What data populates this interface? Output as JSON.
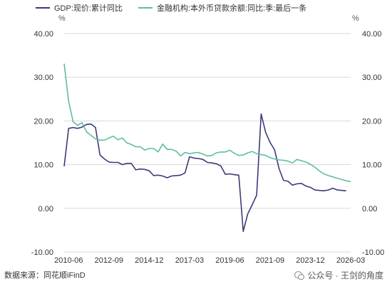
{
  "chart_data": {
    "type": "line",
    "title": "",
    "legend_position": "top-left",
    "left_unit": "%",
    "right_unit": "%",
    "ylim": [
      -10,
      40
    ],
    "y_ticks": [
      "40.00",
      "30.00",
      "20.00",
      "10.00",
      "0.00",
      "-10.00"
    ],
    "right_y_ticks": [
      "40.00",
      "30.00",
      "20.00",
      "10.00",
      "0.00",
      "-10.00"
    ],
    "x_ticks": [
      "2010-06",
      "2012-09",
      "2014-12",
      "2017-03",
      "2019-06",
      "2021-09",
      "2023-12",
      "2026-03"
    ],
    "grid": "horizontal",
    "series": [
      {
        "name": "GDP:现价:累计同比",
        "color": "#3b3b7a",
        "points": [
          [
            "2010-03",
            9.6
          ],
          [
            "2010-06",
            18.3
          ],
          [
            "2010-09",
            18.5
          ],
          [
            "2010-12",
            18.3
          ],
          [
            "2011-03",
            18.6
          ],
          [
            "2011-06",
            19.2
          ],
          [
            "2011-09",
            19.3
          ],
          [
            "2011-12",
            18.5
          ],
          [
            "2012-03",
            12.2
          ],
          [
            "2012-06",
            11.3
          ],
          [
            "2012-09",
            10.6
          ],
          [
            "2012-12",
            10.5
          ],
          [
            "2013-03",
            10.5
          ],
          [
            "2013-06",
            10.0
          ],
          [
            "2013-09",
            10.3
          ],
          [
            "2013-12",
            10.3
          ],
          [
            "2014-03",
            8.8
          ],
          [
            "2014-06",
            9.0
          ],
          [
            "2014-09",
            8.9
          ],
          [
            "2014-12",
            8.6
          ],
          [
            "2015-03",
            7.5
          ],
          [
            "2015-06",
            7.6
          ],
          [
            "2015-09",
            7.4
          ],
          [
            "2015-12",
            7.0
          ],
          [
            "2016-03",
            7.4
          ],
          [
            "2016-06",
            7.5
          ],
          [
            "2016-09",
            7.6
          ],
          [
            "2016-12",
            8.1
          ],
          [
            "2017-03",
            11.8
          ],
          [
            "2017-06",
            11.5
          ],
          [
            "2017-09",
            11.4
          ],
          [
            "2017-12",
            11.2
          ],
          [
            "2018-03",
            10.5
          ],
          [
            "2018-06",
            10.4
          ],
          [
            "2018-09",
            10.2
          ],
          [
            "2018-12",
            9.7
          ],
          [
            "2019-03",
            7.8
          ],
          [
            "2019-06",
            7.9
          ],
          [
            "2019-09",
            7.7
          ],
          [
            "2019-12",
            7.6
          ],
          [
            "2020-03",
            -5.3
          ],
          [
            "2020-06",
            -1.3
          ],
          [
            "2020-09",
            0.8
          ],
          [
            "2020-12",
            3.0
          ],
          [
            "2021-03",
            21.6
          ],
          [
            "2021-06",
            17.4
          ],
          [
            "2021-09",
            15.1
          ],
          [
            "2021-12",
            13.4
          ],
          [
            "2022-03",
            9.1
          ],
          [
            "2022-06",
            6.4
          ],
          [
            "2022-09",
            6.2
          ],
          [
            "2022-12",
            5.3
          ],
          [
            "2023-03",
            5.6
          ],
          [
            "2023-06",
            5.7
          ],
          [
            "2023-09",
            5.1
          ],
          [
            "2023-12",
            4.8
          ],
          [
            "2024-03",
            4.2
          ],
          [
            "2024-06",
            4.1
          ],
          [
            "2024-09",
            4.0
          ],
          [
            "2024-12",
            4.2
          ],
          [
            "2025-03",
            4.6
          ],
          [
            "2025-06",
            4.2
          ],
          [
            "2025-09",
            4.1
          ],
          [
            "2025-12",
            4.0
          ]
        ]
      },
      {
        "name": "金融机构:本外币贷款余额:同比:季:最后一条",
        "color": "#5fbf9f",
        "points": [
          [
            "2010-03",
            33.1
          ],
          [
            "2010-06",
            24.5
          ],
          [
            "2010-09",
            19.8
          ],
          [
            "2010-12",
            19.0
          ],
          [
            "2011-03",
            19.6
          ],
          [
            "2011-06",
            17.5
          ],
          [
            "2011-09",
            16.7
          ],
          [
            "2011-12",
            15.9
          ],
          [
            "2012-03",
            15.6
          ],
          [
            "2012-06",
            15.6
          ],
          [
            "2012-09",
            16.1
          ],
          [
            "2012-12",
            16.5
          ],
          [
            "2013-03",
            15.7
          ],
          [
            "2013-06",
            16.1
          ],
          [
            "2013-09",
            15.0
          ],
          [
            "2013-12",
            14.6
          ],
          [
            "2014-03",
            14.1
          ],
          [
            "2014-06",
            14.1
          ],
          [
            "2014-09",
            13.3
          ],
          [
            "2014-12",
            13.7
          ],
          [
            "2015-03",
            13.7
          ],
          [
            "2015-06",
            12.9
          ],
          [
            "2015-09",
            14.7
          ],
          [
            "2015-12",
            13.5
          ],
          [
            "2016-03",
            13.5
          ],
          [
            "2016-06",
            13.1
          ],
          [
            "2016-09",
            12.0
          ],
          [
            "2016-12",
            12.8
          ],
          [
            "2017-03",
            12.5
          ],
          [
            "2017-06",
            12.7
          ],
          [
            "2017-09",
            12.8
          ],
          [
            "2017-12",
            12.4
          ],
          [
            "2018-03",
            12.0
          ],
          [
            "2018-06",
            12.1
          ],
          [
            "2018-09",
            12.7
          ],
          [
            "2018-12",
            12.9
          ],
          [
            "2019-03",
            12.9
          ],
          [
            "2019-06",
            13.3
          ],
          [
            "2019-09",
            12.6
          ],
          [
            "2019-12",
            12.1
          ],
          [
            "2020-03",
            12.2
          ],
          [
            "2020-06",
            12.7
          ],
          [
            "2020-09",
            13.0
          ],
          [
            "2020-12",
            12.5
          ],
          [
            "2021-03",
            12.3
          ],
          [
            "2021-06",
            12.1
          ],
          [
            "2021-09",
            11.6
          ],
          [
            "2021-12",
            11.3
          ],
          [
            "2022-03",
            11.1
          ],
          [
            "2022-06",
            11.0
          ],
          [
            "2022-09",
            10.8
          ],
          [
            "2022-12",
            10.4
          ],
          [
            "2023-03",
            11.2
          ],
          [
            "2023-06",
            10.9
          ],
          [
            "2023-09",
            10.6
          ],
          [
            "2023-12",
            10.1
          ],
          [
            "2024-03",
            9.4
          ],
          [
            "2024-06",
            8.6
          ],
          [
            "2024-09",
            7.9
          ],
          [
            "2024-12",
            7.5
          ],
          [
            "2025-03",
            7.2
          ],
          [
            "2025-06",
            6.9
          ],
          [
            "2025-09",
            6.6
          ],
          [
            "2025-12",
            6.3
          ],
          [
            "2026-03",
            6.1
          ]
        ]
      }
    ]
  },
  "source_text": "数据来源：同花顺iFinD",
  "watermark_text": "公众号 · 王剑的角度"
}
